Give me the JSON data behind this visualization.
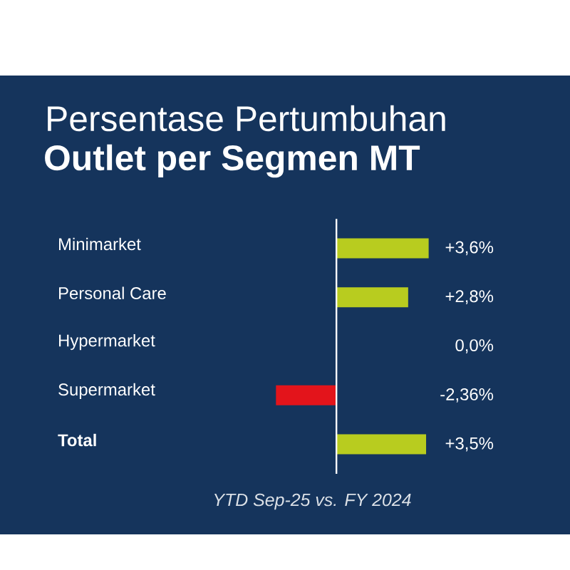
{
  "chart_data": {
    "type": "bar",
    "orientation": "horizontal",
    "title": "Persentase Pertumbuhan",
    "subtitle": "Outlet per Segmen MT",
    "categories": [
      "Minimarket",
      "Personal Care",
      "Hypermarket",
      "Supermarket",
      "**Total**"
    ],
    "values": [
      3.6,
      2.8,
      0.0,
      -2.36,
      3.5
    ],
    "value_labels": [
      "+3,6%",
      "+2,8%",
      "0,0%",
      "-2,36%",
      "+3,5%"
    ],
    "colors": [
      "#b8cc1f",
      "#b8cc1f",
      "#b8cc1f",
      "#e3141b",
      "#b8cc1f"
    ],
    "annotations": [
      "YTD Sep-25 vs. FY 2024"
    ]
  }
}
